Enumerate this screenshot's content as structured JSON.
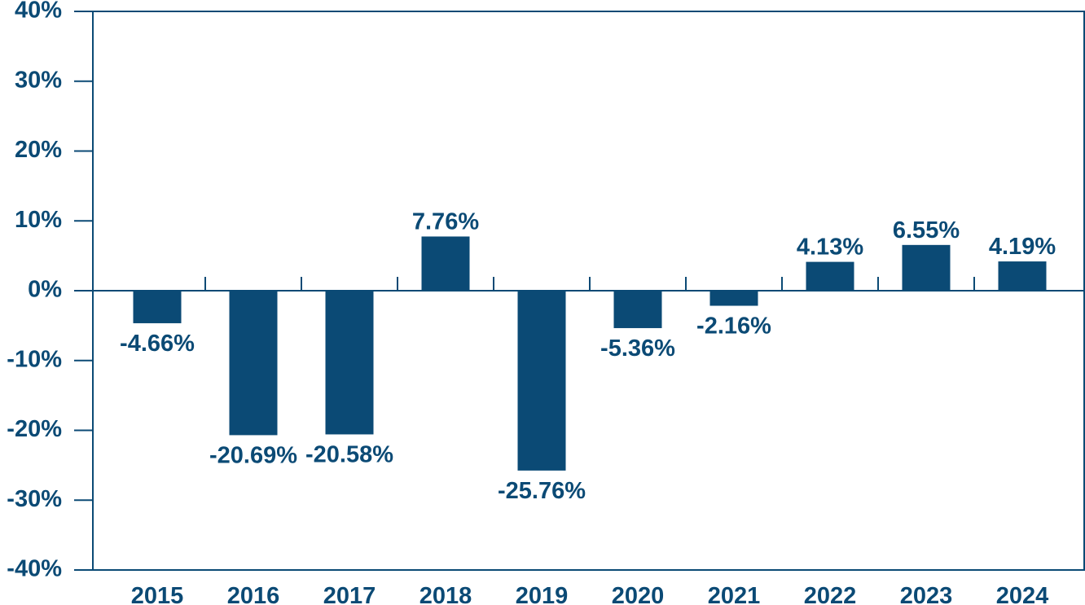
{
  "chart_data": {
    "type": "bar",
    "categories": [
      "2015",
      "2016",
      "2017",
      "2018",
      "2019",
      "2020",
      "2021",
      "2022",
      "2023",
      "2024"
    ],
    "values": [
      -4.66,
      -20.69,
      -20.58,
      7.76,
      -25.76,
      -5.36,
      -2.16,
      4.13,
      6.55,
      4.19
    ],
    "data_labels": [
      "-4.66%",
      "-20.69%",
      "-20.58%",
      "7.76%",
      "-25.76%",
      "-5.36%",
      "-2.16%",
      "4.13%",
      "6.55%",
      "4.19%"
    ],
    "title": "",
    "xlabel": "",
    "ylabel": "",
    "ylim": [
      -40,
      40
    ],
    "y_ticks": [
      40,
      30,
      20,
      10,
      0,
      -10,
      -20,
      -30,
      -40
    ],
    "y_tick_labels": [
      "40%",
      "30%",
      "20%",
      "10%",
      "0%",
      "-10%",
      "-20%",
      "-30%",
      "-40%"
    ],
    "grid": false,
    "legend": false,
    "colors": {
      "bar": "#0b4a75",
      "axis": "#0b4a75",
      "text": "#0b4a75"
    }
  }
}
